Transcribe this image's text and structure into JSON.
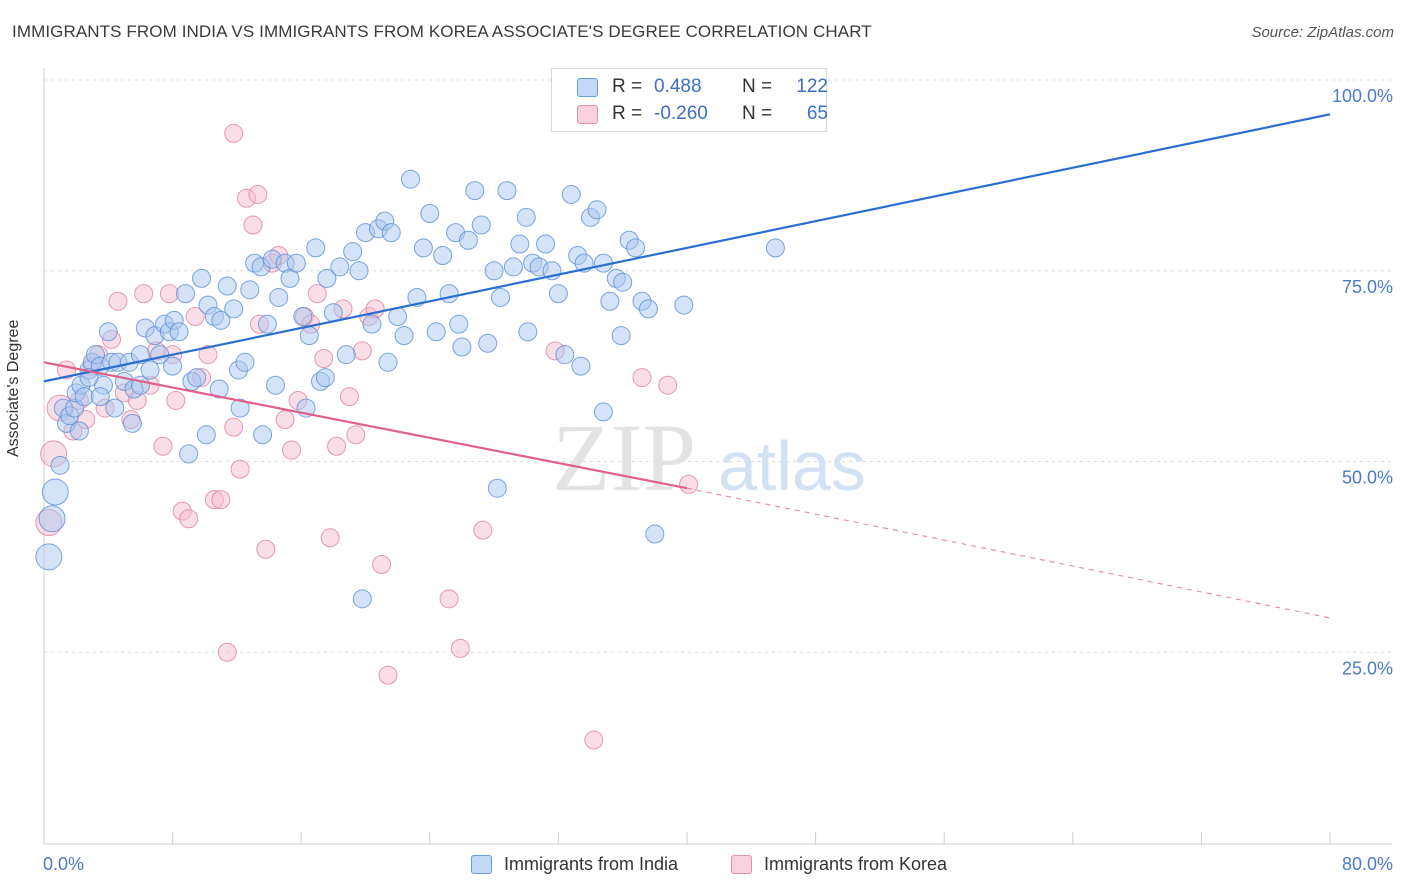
{
  "title": "IMMIGRANTS FROM INDIA VS IMMIGRANTS FROM KOREA ASSOCIATE'S DEGREE CORRELATION CHART",
  "source": "Source: ZipAtlas.com",
  "watermark": {
    "zip": "ZIP",
    "atlas": "atlas"
  },
  "legend": {
    "india": {
      "r_label": "R =",
      "r_value": "0.488",
      "n_label": "N =",
      "n_value": "122"
    },
    "korea": {
      "r_label": "R =",
      "r_value": "-0.260",
      "n_label": "N =",
      "n_value": "65"
    }
  },
  "bottom_legend": {
    "india": "Immigrants from India",
    "korea": "Immigrants from Korea"
  },
  "colors": {
    "india_fill": "#aac8f0",
    "india_stroke": "#5b8ed8",
    "india_line": "#2a6fd0",
    "korea_fill": "#f6bdd0",
    "korea_stroke": "#e07fa2",
    "korea_line": "#e0608c",
    "tick_text": "#4a7bc8",
    "grid": "#d9d9d9"
  },
  "chart_data": {
    "type": "scatter",
    "title": "IMMIGRANTS FROM INDIA VS IMMIGRANTS FROM KOREA ASSOCIATE'S DEGREE CORRELATION CHART",
    "xlabel": "",
    "ylabel": "Associate's Degree",
    "xlim": [
      0,
      80
    ],
    "ylim": [
      0,
      100
    ],
    "x_tick_labels": [
      "0.0%",
      "80.0%"
    ],
    "y_ticks": [
      25,
      50,
      75,
      100
    ],
    "y_tick_labels": [
      "25.0%",
      "50.0%",
      "75.0%",
      "100.0%"
    ],
    "grid": true,
    "legend_position": "top-center",
    "series": [
      {
        "name": "Immigrants from India",
        "r": 0.488,
        "n": 122,
        "trend": {
          "x0": 0,
          "y0": 60.5,
          "x1": 80,
          "y1": 95.5
        },
        "points": [
          [
            0.3,
            37.5
          ],
          [
            0.5,
            42.5
          ],
          [
            0.7,
            46
          ],
          [
            1,
            49.5
          ],
          [
            1.2,
            57
          ],
          [
            1.4,
            55
          ],
          [
            1.6,
            56
          ],
          [
            1.9,
            57
          ],
          [
            2,
            59
          ],
          [
            2.3,
            60
          ],
          [
            2.5,
            58.5
          ],
          [
            2.8,
            62
          ],
          [
            3,
            63
          ],
          [
            3.2,
            64
          ],
          [
            3.5,
            62.5
          ],
          [
            3.7,
            60
          ],
          [
            4,
            67
          ],
          [
            4.2,
            63
          ],
          [
            4.6,
            63
          ],
          [
            5,
            60.5
          ],
          [
            5.3,
            63
          ],
          [
            5.6,
            59.5
          ],
          [
            6,
            64
          ],
          [
            6.3,
            67.5
          ],
          [
            6.6,
            62
          ],
          [
            6.9,
            66.5
          ],
          [
            7.2,
            64
          ],
          [
            7.5,
            68
          ],
          [
            7.8,
            67
          ],
          [
            8.1,
            68.5
          ],
          [
            8.4,
            67
          ],
          [
            8.8,
            72
          ],
          [
            9.2,
            60.5
          ],
          [
            9.5,
            61
          ],
          [
            9.8,
            74
          ],
          [
            10.2,
            70.5
          ],
          [
            10.6,
            69
          ],
          [
            11,
            68.5
          ],
          [
            11.4,
            73
          ],
          [
            11.8,
            70
          ],
          [
            12.1,
            62
          ],
          [
            12.5,
            63
          ],
          [
            12.8,
            72.5
          ],
          [
            13.1,
            76
          ],
          [
            13.5,
            75.5
          ],
          [
            13.9,
            68
          ],
          [
            14.2,
            76.5
          ],
          [
            14.6,
            71.5
          ],
          [
            15,
            76
          ],
          [
            15.3,
            74
          ],
          [
            15.7,
            76
          ],
          [
            16.1,
            69
          ],
          [
            16.5,
            66.5
          ],
          [
            16.9,
            78
          ],
          [
            17.2,
            60.5
          ],
          [
            17.6,
            74
          ],
          [
            18,
            69.5
          ],
          [
            18.4,
            75.5
          ],
          [
            18.8,
            64
          ],
          [
            19.2,
            77.5
          ],
          [
            19.6,
            75
          ],
          [
            20,
            80
          ],
          [
            20.4,
            68
          ],
          [
            20.8,
            80.5
          ],
          [
            21.2,
            81.5
          ],
          [
            21.6,
            80
          ],
          [
            22,
            69
          ],
          [
            22.4,
            66.5
          ],
          [
            22.8,
            87
          ],
          [
            23.2,
            71.5
          ],
          [
            23.6,
            78
          ],
          [
            24,
            82.5
          ],
          [
            24.4,
            67
          ],
          [
            24.8,
            77
          ],
          [
            25.2,
            72
          ],
          [
            25.6,
            80
          ],
          [
            26,
            65
          ],
          [
            26.4,
            79
          ],
          [
            26.8,
            85.5
          ],
          [
            27.2,
            81
          ],
          [
            27.6,
            65.5
          ],
          [
            28,
            75
          ],
          [
            28.4,
            71.5
          ],
          [
            28.8,
            85.5
          ],
          [
            29.2,
            75.5
          ],
          [
            29.6,
            78.5
          ],
          [
            30,
            82
          ],
          [
            30.4,
            76
          ],
          [
            30.8,
            75.5
          ],
          [
            31.2,
            78.5
          ],
          [
            31.6,
            75
          ],
          [
            32,
            72
          ],
          [
            32.4,
            64
          ],
          [
            32.8,
            85
          ],
          [
            33.2,
            77
          ],
          [
            33.6,
            76
          ],
          [
            34,
            82
          ],
          [
            34.4,
            83
          ],
          [
            34.8,
            76
          ],
          [
            35.2,
            71
          ],
          [
            35.6,
            74
          ],
          [
            36,
            73.5
          ],
          [
            36.4,
            79
          ],
          [
            36.8,
            78
          ],
          [
            37.2,
            71
          ],
          [
            37.6,
            70
          ],
          [
            2.2,
            54
          ],
          [
            3.5,
            58.5
          ],
          [
            5.5,
            55
          ],
          [
            9,
            51
          ],
          [
            10.1,
            53.5
          ],
          [
            12.2,
            57
          ],
          [
            13.6,
            53.5
          ],
          [
            17.5,
            61
          ],
          [
            19.8,
            32
          ],
          [
            28.2,
            46.5
          ],
          [
            34.8,
            56.5
          ],
          [
            38,
            40.5
          ],
          [
            45.5,
            78
          ],
          [
            39.8,
            70.5
          ],
          [
            33.4,
            62.5
          ],
          [
            6,
            60
          ],
          [
            4.4,
            57
          ],
          [
            8,
            62.5
          ],
          [
            10.9,
            59.5
          ],
          [
            14.4,
            60
          ],
          [
            16.3,
            57
          ],
          [
            21.4,
            63
          ],
          [
            25.8,
            68
          ],
          [
            30.1,
            67
          ],
          [
            35.9,
            66.5
          ],
          [
            2.8,
            61
          ]
        ]
      },
      {
        "name": "Immigrants from Korea",
        "r": -0.26,
        "n": 65,
        "trend": {
          "x0": 0,
          "y0": 63,
          "x1": 40,
          "y1": 46.5,
          "dashed_x1": 80,
          "dashed_y1": 29.5
        },
        "points": [
          [
            0.3,
            42
          ],
          [
            0.6,
            51
          ],
          [
            1,
            57
          ],
          [
            1.4,
            62
          ],
          [
            1.8,
            54
          ],
          [
            2.2,
            58
          ],
          [
            2.6,
            55.5
          ],
          [
            3,
            62.5
          ],
          [
            3.4,
            64
          ],
          [
            3.8,
            57
          ],
          [
            4.2,
            66
          ],
          [
            4.6,
            71
          ],
          [
            5,
            59
          ],
          [
            5.4,
            55.5
          ],
          [
            5.8,
            58
          ],
          [
            6.2,
            72
          ],
          [
            6.6,
            60
          ],
          [
            7,
            64.5
          ],
          [
            7.4,
            52
          ],
          [
            7.8,
            72
          ],
          [
            8.2,
            58
          ],
          [
            8.6,
            43.5
          ],
          [
            9,
            42.5
          ],
          [
            9.4,
            69
          ],
          [
            9.8,
            61
          ],
          [
            10.2,
            64
          ],
          [
            10.6,
            45
          ],
          [
            11,
            45
          ],
          [
            11.4,
            25
          ],
          [
            11.8,
            54.5
          ],
          [
            12.2,
            49
          ],
          [
            12.6,
            84.5
          ],
          [
            13,
            81
          ],
          [
            13.4,
            68
          ],
          [
            13.8,
            38.5
          ],
          [
            14.2,
            76
          ],
          [
            14.6,
            77
          ],
          [
            15,
            55.5
          ],
          [
            15.4,
            51.5
          ],
          [
            15.8,
            58
          ],
          [
            16.2,
            69
          ],
          [
            16.6,
            68
          ],
          [
            17,
            72
          ],
          [
            17.4,
            63.5
          ],
          [
            17.8,
            40
          ],
          [
            18.2,
            52
          ],
          [
            18.6,
            70
          ],
          [
            19,
            58.5
          ],
          [
            19.4,
            53.5
          ],
          [
            19.8,
            64.5
          ],
          [
            20.2,
            69
          ],
          [
            20.6,
            70
          ],
          [
            21,
            36.5
          ],
          [
            21.4,
            22
          ],
          [
            25.2,
            32
          ],
          [
            25.9,
            25.5
          ],
          [
            27.3,
            41
          ],
          [
            31.8,
            64.5
          ],
          [
            34.2,
            13.5
          ],
          [
            37.2,
            61
          ],
          [
            11.8,
            93
          ],
          [
            13.3,
            85
          ],
          [
            8,
            64
          ],
          [
            40.1,
            47
          ],
          [
            38.8,
            60
          ]
        ]
      }
    ]
  }
}
